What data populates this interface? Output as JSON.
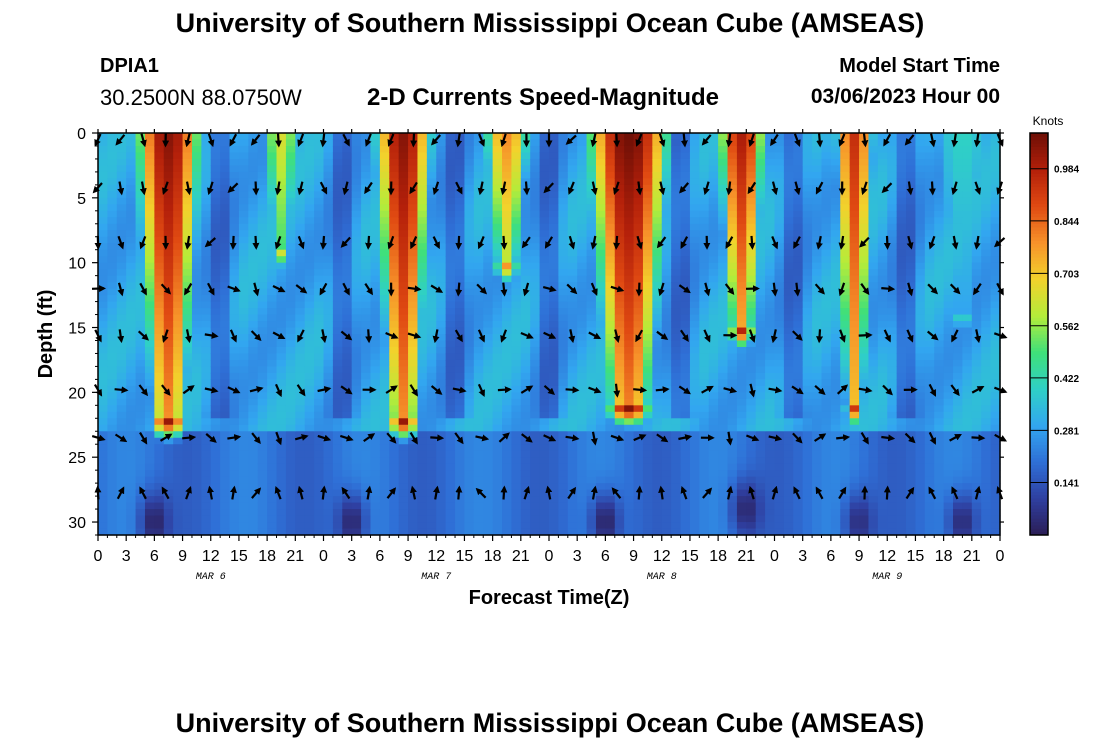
{
  "header": {
    "title": "University of Southern Mississippi Ocean Cube (AMSEAS)",
    "station_id": "DPIA1",
    "station_coords": "30.2500N  88.0750W",
    "subtitle": "2-D Currents Speed-Magnitude",
    "model_start_label": "Model Start Time",
    "model_start_value": "03/06/2023 Hour 00"
  },
  "footer": {
    "title": "University of Southern Mississippi Ocean Cube (AMSEAS)"
  },
  "colors": {
    "ramp": [
      "#2b1d55",
      "#2f3fa0",
      "#2f6fd6",
      "#32a6f0",
      "#2fd0c6",
      "#3fe07a",
      "#b4ec3a",
      "#f2d22c",
      "#f7932a",
      "#e04a12",
      "#b4200a",
      "#6e0f06"
    ]
  },
  "chart_data": {
    "type": "heatmap",
    "title": "2-D Currents Speed-Magnitude",
    "xlabel": "Forecast Time(Z)",
    "ylabel": "Depth (ft)",
    "x_ticks": [
      "0",
      "3",
      "6",
      "9",
      "12",
      "15",
      "18",
      "21",
      "0",
      "3",
      "6",
      "9",
      "12",
      "15",
      "18",
      "21",
      "0",
      "3",
      "6",
      "9",
      "12",
      "15",
      "18",
      "21",
      "0",
      "3",
      "6",
      "9",
      "12",
      "15",
      "18",
      "21",
      "0"
    ],
    "x_tick_hours": [
      0,
      3,
      6,
      9,
      12,
      15,
      18,
      21,
      24,
      27,
      30,
      33,
      36,
      39,
      42,
      45,
      48,
      51,
      54,
      57,
      60,
      63,
      66,
      69,
      72,
      75,
      78,
      81,
      84,
      87,
      90,
      93,
      96
    ],
    "date_labels": [
      {
        "label": "MAR 6",
        "hour": 12
      },
      {
        "label": "MAR 7",
        "hour": 36
      },
      {
        "label": "MAR 8",
        "hour": 60
      },
      {
        "label": "MAR 9",
        "hour": 84
      }
    ],
    "y_ticks": [
      0,
      5,
      10,
      15,
      20,
      25,
      30
    ],
    "xlim": [
      0,
      96
    ],
    "ylim": [
      0,
      31
    ],
    "y_inverted": true,
    "colorbar": {
      "unit": "Knots",
      "ticks": [
        0.141,
        0.281,
        0.422,
        0.562,
        0.703,
        0.844,
        0.984
      ],
      "range": [
        0.0,
        1.08
      ]
    },
    "speed_features": [
      {
        "center_hour": 7.5,
        "halfwidth_hours": 3.5,
        "bottom_depth_ft": 22,
        "peak_knots": 1.05
      },
      {
        "center_hour": 19.5,
        "halfwidth_hours": 2.0,
        "bottom_depth_ft": 9,
        "peak_knots": 0.65
      },
      {
        "center_hour": 32.5,
        "halfwidth_hours": 3.0,
        "bottom_depth_ft": 22,
        "peak_knots": 1.05
      },
      {
        "center_hour": 43.5,
        "halfwidth_hours": 2.5,
        "bottom_depth_ft": 10,
        "peak_knots": 0.8
      },
      {
        "center_hour": 56.5,
        "halfwidth_hours": 4.5,
        "bottom_depth_ft": 21,
        "peak_knots": 1.08
      },
      {
        "center_hour": 68.5,
        "halfwidth_hours": 2.5,
        "bottom_depth_ft": 15,
        "peak_knots": 1.0
      },
      {
        "center_hour": 80.5,
        "halfwidth_hours": 2.0,
        "bottom_depth_ft": 21,
        "peak_knots": 0.95
      },
      {
        "center_hour": 92.0,
        "halfwidth_hours": 4.0,
        "bottom_depth_ft": 14,
        "peak_knots": 0.4
      }
    ],
    "bottom_minima": [
      {
        "center_hour": 6.0,
        "depth_ft": 30,
        "knots": 0.02
      },
      {
        "center_hour": 27.0,
        "depth_ft": 30,
        "knots": 0.03
      },
      {
        "center_hour": 54.0,
        "depth_ft": 30,
        "knots": 0.02
      },
      {
        "center_hour": 69.0,
        "depth_ft": 29,
        "knots": 0.03
      },
      {
        "center_hour": 81.0,
        "depth_ft": 30,
        "knots": 0.05
      },
      {
        "center_hour": 92.0,
        "depth_ft": 30,
        "knots": 0.04
      }
    ],
    "arrow_depths_ft": [
      0.5,
      4.2,
      8.4,
      12.0,
      15.6,
      19.8,
      23.5,
      27.8
    ],
    "arrow_interval_hours": 2.4,
    "arrow_direction_note": "surface arrows mostly point southward (down); near-bottom arrows mostly point northward (up)"
  }
}
